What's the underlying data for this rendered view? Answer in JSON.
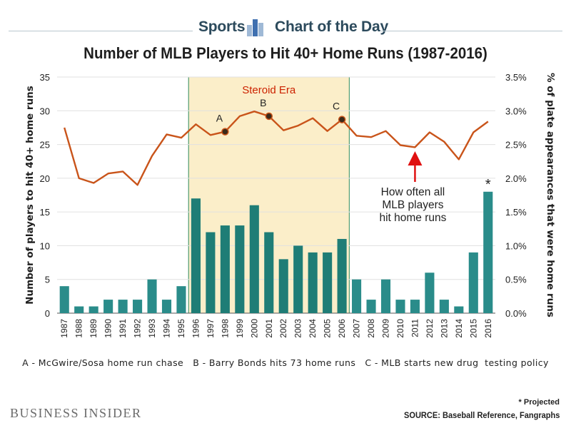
{
  "header": {
    "left": "Sports",
    "right": "Chart of the Day"
  },
  "brand": "Business Insider",
  "chart_data": {
    "type": "bar",
    "title": "Number of MLB Players to Hit 40+ Home Runs (1987-2016)",
    "ylabel": "Number of players to hit 40+ home runs",
    "y2label": "% of plate appearances that were home runs",
    "ylim": [
      0,
      35
    ],
    "y2lim": [
      0,
      3.5
    ],
    "yticks": [
      "0",
      "5",
      "10",
      "15",
      "20",
      "25",
      "30",
      "35"
    ],
    "y2ticks": [
      "0.0%",
      "0.5%",
      "1.0%",
      "1.5%",
      "2.0%",
      "2.5%",
      "3.0%",
      "3.5%"
    ],
    "grid": true,
    "categories": [
      "1987",
      "1988",
      "1989",
      "1990",
      "1991",
      "1992",
      "1993",
      "1994",
      "1995",
      "1996",
      "1997",
      "1998",
      "1999",
      "2000",
      "2001",
      "2002",
      "2003",
      "2004",
      "2005",
      "2006",
      "2007",
      "2008",
      "2009",
      "2010",
      "2011",
      "2012",
      "2013",
      "2014",
      "2015",
      "2016"
    ],
    "series": [
      {
        "type": "bar",
        "axis": "left",
        "values": [
          4,
          1,
          1,
          2,
          2,
          2,
          5,
          2,
          4,
          17,
          12,
          13,
          13,
          16,
          12,
          8,
          10,
          9,
          9,
          11,
          5,
          2,
          5,
          2,
          2,
          6,
          2,
          1,
          9,
          18
        ]
      },
      {
        "type": "line",
        "axis": "right",
        "values": [
          2.75,
          2.0,
          1.93,
          2.07,
          2.1,
          1.9,
          2.33,
          2.65,
          2.6,
          2.8,
          2.64,
          2.69,
          2.92,
          2.99,
          2.92,
          2.71,
          2.78,
          2.89,
          2.7,
          2.87,
          2.63,
          2.61,
          2.7,
          2.49,
          2.46,
          2.68,
          2.54,
          2.28,
          2.68,
          2.84
        ]
      }
    ],
    "era": {
      "label": "Steroid Era",
      "start": "1996",
      "end": "2006"
    },
    "markers": [
      {
        "label": "A",
        "year": "1998"
      },
      {
        "label": "B",
        "year": "2001"
      },
      {
        "label": "C",
        "year": "2006"
      }
    ],
    "annotation": {
      "lines": [
        "How often all",
        "MLB players",
        "hit home runs"
      ],
      "year": "2011"
    },
    "asterisk": "*",
    "legend_note": "A - McGwire/Sosa home run chase   B - Barry Bonds hits 73 home runs   C - MLB starts new drug  testing policy",
    "projected_note": "* Projected",
    "source": "SOURCE: Baseball Reference, Fangraphs"
  },
  "colors": {
    "bar": "#2a8c8a",
    "bar_era": "#1f7d76",
    "line": "#c9541a",
    "era_fill": "#fbeec9",
    "era_border": "#2f8a5c",
    "arrow": "#e01010",
    "era_label": "#cc2200",
    "grid": "#e0e0e0"
  }
}
